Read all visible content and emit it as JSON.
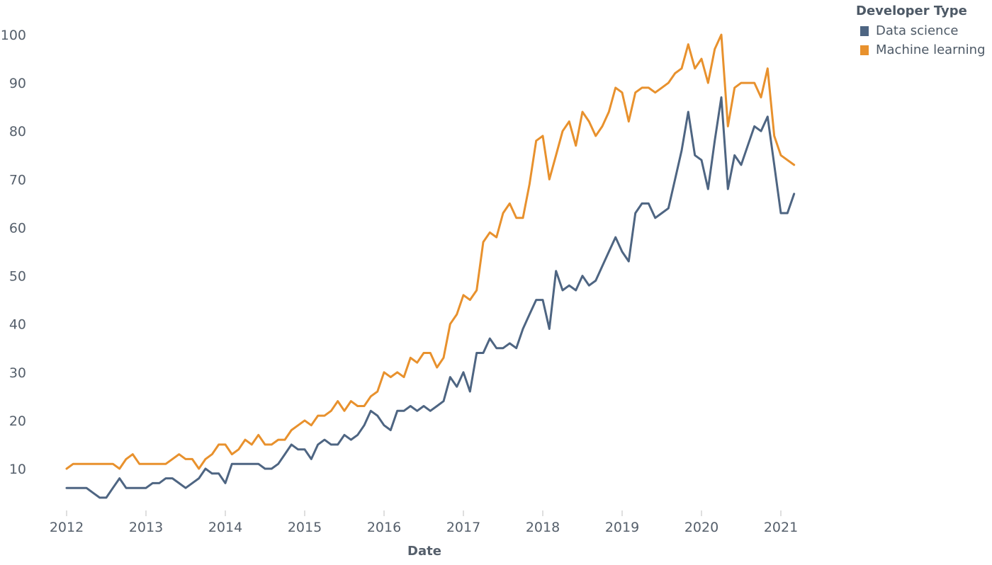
{
  "chart_data": {
    "type": "line",
    "title": "",
    "xlabel": "Date",
    "ylabel": "",
    "xlim": [
      "2012-01",
      "2021-03"
    ],
    "ylim": [
      0,
      102
    ],
    "x_ticks": [
      "2012",
      "2013",
      "2014",
      "2015",
      "2016",
      "2017",
      "2018",
      "2019",
      "2020",
      "2021"
    ],
    "y_ticks": [
      10,
      20,
      30,
      40,
      50,
      60,
      70,
      80,
      90,
      100
    ],
    "grid": false,
    "legend": {
      "title": "Developer Type",
      "placement": "top-right"
    },
    "series": [
      {
        "name": "Data science",
        "color": "#4e6582",
        "points": [
          [
            "2012-01",
            6
          ],
          [
            "2012-02",
            6
          ],
          [
            "2012-03",
            6
          ],
          [
            "2012-04",
            6
          ],
          [
            "2012-05",
            5
          ],
          [
            "2012-06",
            4
          ],
          [
            "2012-07",
            4
          ],
          [
            "2012-08",
            6
          ],
          [
            "2012-09",
            8
          ],
          [
            "2012-10",
            6
          ],
          [
            "2012-11",
            6
          ],
          [
            "2012-12",
            6
          ],
          [
            "2013-01",
            6
          ],
          [
            "2013-02",
            7
          ],
          [
            "2013-03",
            7
          ],
          [
            "2013-04",
            8
          ],
          [
            "2013-05",
            8
          ],
          [
            "2013-06",
            7
          ],
          [
            "2013-07",
            6
          ],
          [
            "2013-08",
            7
          ],
          [
            "2013-09",
            8
          ],
          [
            "2013-10",
            10
          ],
          [
            "2013-11",
            9
          ],
          [
            "2013-12",
            9
          ],
          [
            "2014-01",
            7
          ],
          [
            "2014-02",
            11
          ],
          [
            "2014-03",
            11
          ],
          [
            "2014-04",
            11
          ],
          [
            "2014-05",
            11
          ],
          [
            "2014-06",
            11
          ],
          [
            "2014-07",
            10
          ],
          [
            "2014-08",
            10
          ],
          [
            "2014-09",
            11
          ],
          [
            "2014-10",
            13
          ],
          [
            "2014-11",
            15
          ],
          [
            "2014-12",
            14
          ],
          [
            "2015-01",
            14
          ],
          [
            "2015-02",
            12
          ],
          [
            "2015-03",
            15
          ],
          [
            "2015-04",
            16
          ],
          [
            "2015-05",
            15
          ],
          [
            "2015-06",
            15
          ],
          [
            "2015-07",
            17
          ],
          [
            "2015-08",
            16
          ],
          [
            "2015-09",
            17
          ],
          [
            "2015-10",
            19
          ],
          [
            "2015-11",
            22
          ],
          [
            "2015-12",
            21
          ],
          [
            "2016-01",
            19
          ],
          [
            "2016-02",
            18
          ],
          [
            "2016-03",
            22
          ],
          [
            "2016-04",
            22
          ],
          [
            "2016-05",
            23
          ],
          [
            "2016-06",
            22
          ],
          [
            "2016-07",
            23
          ],
          [
            "2016-08",
            22
          ],
          [
            "2016-09",
            23
          ],
          [
            "2016-10",
            24
          ],
          [
            "2016-11",
            29
          ],
          [
            "2016-12",
            27
          ],
          [
            "2017-01",
            30
          ],
          [
            "2017-02",
            26
          ],
          [
            "2017-03",
            34
          ],
          [
            "2017-04",
            34
          ],
          [
            "2017-05",
            37
          ],
          [
            "2017-06",
            35
          ],
          [
            "2017-07",
            35
          ],
          [
            "2017-08",
            36
          ],
          [
            "2017-09",
            35
          ],
          [
            "2017-10",
            39
          ],
          [
            "2017-11",
            42
          ],
          [
            "2017-12",
            45
          ],
          [
            "2018-01",
            45
          ],
          [
            "2018-02",
            39
          ],
          [
            "2018-03",
            51
          ],
          [
            "2018-04",
            47
          ],
          [
            "2018-05",
            48
          ],
          [
            "2018-06",
            47
          ],
          [
            "2018-07",
            50
          ],
          [
            "2018-08",
            48
          ],
          [
            "2018-09",
            49
          ],
          [
            "2018-10",
            52
          ],
          [
            "2018-11",
            55
          ],
          [
            "2018-12",
            58
          ],
          [
            "2019-01",
            55
          ],
          [
            "2019-02",
            53
          ],
          [
            "2019-03",
            63
          ],
          [
            "2019-04",
            65
          ],
          [
            "2019-05",
            65
          ],
          [
            "2019-06",
            62
          ],
          [
            "2019-07",
            63
          ],
          [
            "2019-08",
            64
          ],
          [
            "2019-09",
            70
          ],
          [
            "2019-10",
            76
          ],
          [
            "2019-11",
            84
          ],
          [
            "2019-12",
            75
          ],
          [
            "2020-01",
            74
          ],
          [
            "2020-02",
            68
          ],
          [
            "2020-03",
            78
          ],
          [
            "2020-04",
            87
          ],
          [
            "2020-05",
            68
          ],
          [
            "2020-06",
            75
          ],
          [
            "2020-07",
            73
          ],
          [
            "2020-08",
            77
          ],
          [
            "2020-09",
            81
          ],
          [
            "2020-10",
            80
          ],
          [
            "2020-11",
            83
          ],
          [
            "2020-12",
            73
          ],
          [
            "2021-01",
            63
          ],
          [
            "2021-02",
            63
          ],
          [
            "2021-03",
            67
          ]
        ]
      },
      {
        "name": "Machine learning",
        "color": "#e8912d",
        "points": [
          [
            "2012-01",
            10
          ],
          [
            "2012-02",
            11
          ],
          [
            "2012-03",
            11
          ],
          [
            "2012-04",
            11
          ],
          [
            "2012-05",
            11
          ],
          [
            "2012-06",
            11
          ],
          [
            "2012-07",
            11
          ],
          [
            "2012-08",
            11
          ],
          [
            "2012-09",
            10
          ],
          [
            "2012-10",
            12
          ],
          [
            "2012-11",
            13
          ],
          [
            "2012-12",
            11
          ],
          [
            "2013-01",
            11
          ],
          [
            "2013-02",
            11
          ],
          [
            "2013-03",
            11
          ],
          [
            "2013-04",
            11
          ],
          [
            "2013-05",
            12
          ],
          [
            "2013-06",
            13
          ],
          [
            "2013-07",
            12
          ],
          [
            "2013-08",
            12
          ],
          [
            "2013-09",
            10
          ],
          [
            "2013-10",
            12
          ],
          [
            "2013-11",
            13
          ],
          [
            "2013-12",
            15
          ],
          [
            "2014-01",
            15
          ],
          [
            "2014-02",
            13
          ],
          [
            "2014-03",
            14
          ],
          [
            "2014-04",
            16
          ],
          [
            "2014-05",
            15
          ],
          [
            "2014-06",
            17
          ],
          [
            "2014-07",
            15
          ],
          [
            "2014-08",
            15
          ],
          [
            "2014-09",
            16
          ],
          [
            "2014-10",
            16
          ],
          [
            "2014-11",
            18
          ],
          [
            "2014-12",
            19
          ],
          [
            "2015-01",
            20
          ],
          [
            "2015-02",
            19
          ],
          [
            "2015-03",
            21
          ],
          [
            "2015-04",
            21
          ],
          [
            "2015-05",
            22
          ],
          [
            "2015-06",
            24
          ],
          [
            "2015-07",
            22
          ],
          [
            "2015-08",
            24
          ],
          [
            "2015-09",
            23
          ],
          [
            "2015-10",
            23
          ],
          [
            "2015-11",
            25
          ],
          [
            "2015-12",
            26
          ],
          [
            "2016-01",
            30
          ],
          [
            "2016-02",
            29
          ],
          [
            "2016-03",
            30
          ],
          [
            "2016-04",
            29
          ],
          [
            "2016-05",
            33
          ],
          [
            "2016-06",
            32
          ],
          [
            "2016-07",
            34
          ],
          [
            "2016-08",
            34
          ],
          [
            "2016-09",
            31
          ],
          [
            "2016-10",
            33
          ],
          [
            "2016-11",
            40
          ],
          [
            "2016-12",
            42
          ],
          [
            "2017-01",
            46
          ],
          [
            "2017-02",
            45
          ],
          [
            "2017-03",
            47
          ],
          [
            "2017-04",
            57
          ],
          [
            "2017-05",
            59
          ],
          [
            "2017-06",
            58
          ],
          [
            "2017-07",
            63
          ],
          [
            "2017-08",
            65
          ],
          [
            "2017-09",
            62
          ],
          [
            "2017-10",
            62
          ],
          [
            "2017-11",
            69
          ],
          [
            "2017-12",
            78
          ],
          [
            "2018-01",
            79
          ],
          [
            "2018-02",
            70
          ],
          [
            "2018-03",
            75
          ],
          [
            "2018-04",
            80
          ],
          [
            "2018-05",
            82
          ],
          [
            "2018-06",
            77
          ],
          [
            "2018-07",
            84
          ],
          [
            "2018-08",
            82
          ],
          [
            "2018-09",
            79
          ],
          [
            "2018-10",
            81
          ],
          [
            "2018-11",
            84
          ],
          [
            "2018-12",
            89
          ],
          [
            "2019-01",
            88
          ],
          [
            "2019-02",
            82
          ],
          [
            "2019-03",
            88
          ],
          [
            "2019-04",
            89
          ],
          [
            "2019-05",
            89
          ],
          [
            "2019-06",
            88
          ],
          [
            "2019-07",
            89
          ],
          [
            "2019-08",
            90
          ],
          [
            "2019-09",
            92
          ],
          [
            "2019-10",
            93
          ],
          [
            "2019-11",
            98
          ],
          [
            "2019-12",
            93
          ],
          [
            "2020-01",
            95
          ],
          [
            "2020-02",
            90
          ],
          [
            "2020-03",
            97
          ],
          [
            "2020-04",
            100
          ],
          [
            "2020-05",
            81
          ],
          [
            "2020-06",
            89
          ],
          [
            "2020-07",
            90
          ],
          [
            "2020-08",
            90
          ],
          [
            "2020-09",
            90
          ],
          [
            "2020-10",
            87
          ],
          [
            "2020-11",
            93
          ],
          [
            "2020-12",
            79
          ],
          [
            "2021-01",
            75
          ],
          [
            "2021-02",
            74
          ],
          [
            "2021-03",
            73
          ]
        ]
      }
    ]
  }
}
